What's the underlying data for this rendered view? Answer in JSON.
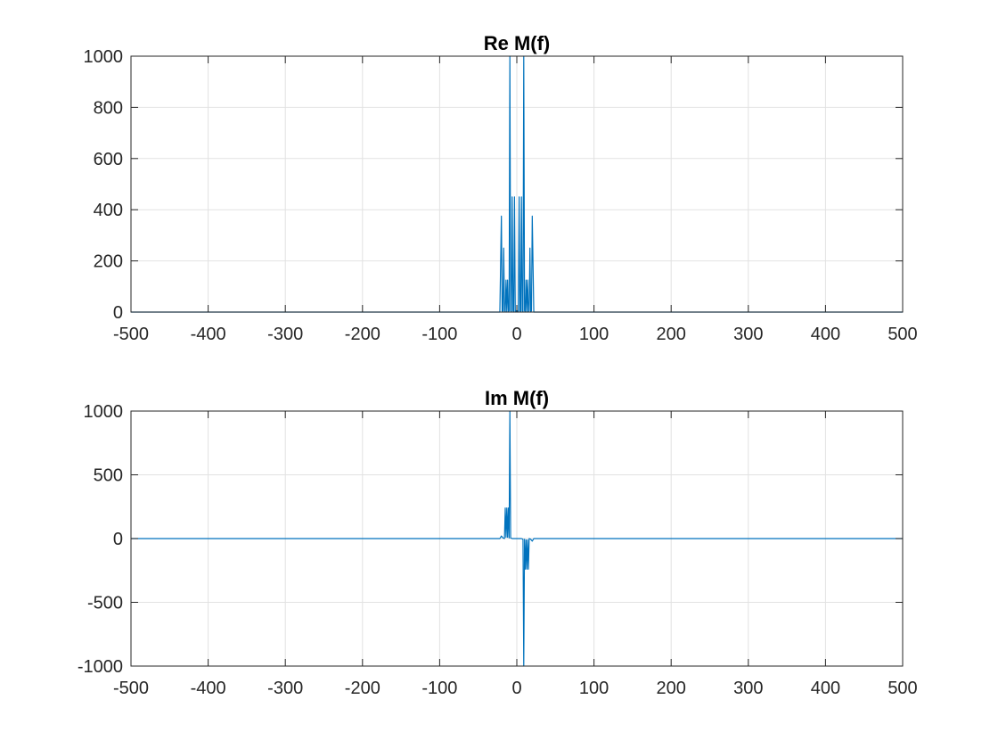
{
  "chart_data": [
    {
      "type": "line",
      "title": "Re M(f)",
      "xlabel": "",
      "ylabel": "",
      "xlim": [
        -500,
        500
      ],
      "ylim": [
        0,
        1000
      ],
      "xticks": [
        -500,
        -400,
        -300,
        -200,
        -100,
        0,
        100,
        200,
        300,
        400,
        500
      ],
      "yticks": [
        0,
        200,
        400,
        600,
        800,
        1000
      ],
      "grid": true,
      "color": "#0072BD",
      "series": [
        {
          "x": [
            -500,
            -22,
            -20,
            -19,
            -18,
            -17,
            -16,
            -15,
            -14,
            -13,
            -12,
            -11,
            -10,
            -9,
            -8,
            -7,
            -6,
            -5,
            -4,
            -3,
            -2,
            -1,
            0,
            1,
            2,
            3,
            4,
            5,
            6,
            7,
            8,
            9,
            10,
            11,
            12,
            13,
            14,
            15,
            16,
            17,
            18,
            19,
            20,
            22,
            500
          ],
          "y": [
            0,
            0,
            375,
            5,
            0,
            250,
            5,
            0,
            125,
            0,
            125,
            0,
            5,
            1000,
            5,
            0,
            450,
            5,
            0,
            450,
            0,
            5,
            0,
            5,
            0,
            450,
            5,
            0,
            450,
            5,
            0,
            1000,
            5,
            0,
            125,
            0,
            125,
            0,
            5,
            250,
            0,
            5,
            375,
            0,
            0
          ]
        }
      ]
    },
    {
      "type": "line",
      "title": "Im M(f)",
      "xlabel": "",
      "ylabel": "",
      "xlim": [
        -500,
        500
      ],
      "ylim": [
        -1000,
        1000
      ],
      "xticks": [
        -500,
        -400,
        -300,
        -200,
        -100,
        0,
        100,
        200,
        300,
        400,
        500
      ],
      "yticks": [
        -1000,
        -500,
        0,
        500,
        1000
      ],
      "grid": true,
      "color": "#0072BD",
      "series": [
        {
          "x": [
            -500,
            -22,
            -20,
            -18,
            -16,
            -15,
            -14,
            -13,
            -12,
            -11,
            -10,
            -9,
            -8,
            -6,
            -4,
            -2,
            0,
            2,
            4,
            6,
            8,
            9,
            10,
            11,
            12,
            13,
            14,
            15,
            16,
            18,
            20,
            22,
            500
          ],
          "y": [
            0,
            0,
            20,
            5,
            0,
            240,
            10,
            240,
            10,
            240,
            5,
            1000,
            5,
            0,
            0,
            0,
            0,
            0,
            0,
            0,
            -5,
            -1000,
            -5,
            -240,
            -10,
            -240,
            -10,
            -240,
            0,
            -5,
            -20,
            0,
            0
          ]
        }
      ]
    }
  ]
}
